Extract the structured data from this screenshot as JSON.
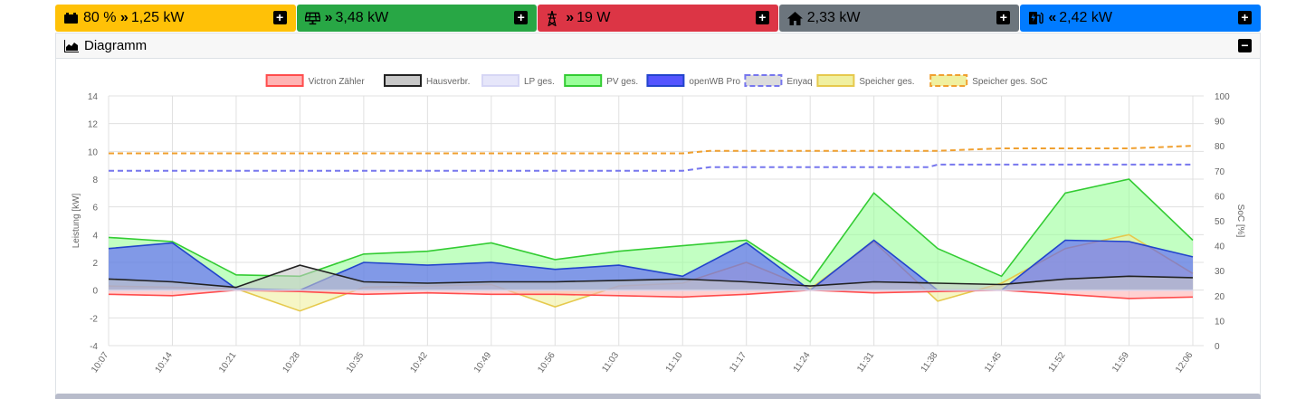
{
  "tiles": [
    {
      "name": "battery",
      "icon": "battery-car-icon",
      "value": "80 % ",
      "arrow": "»",
      "power": "1,25 kW",
      "color": "#ffc107"
    },
    {
      "name": "pv",
      "icon": "solar-panel-icon",
      "value": "",
      "arrow": "»",
      "power": "3,48 kW",
      "color": "#28a745"
    },
    {
      "name": "grid",
      "icon": "power-mast-icon",
      "value": "",
      "arrow": "»",
      "power": "19 W",
      "color": "#dc3545"
    },
    {
      "name": "house",
      "icon": "house-icon",
      "value": "",
      "arrow": "",
      "power": "2,33 kW",
      "color": "#6c757d"
    },
    {
      "name": "charge",
      "icon": "charging-station-icon",
      "value": "",
      "arrow": "«",
      "power": "2,42 kW",
      "color": "#007bff"
    }
  ],
  "tile_button": "+",
  "diagram": {
    "title": "Diagramm",
    "collapse_button": "−"
  },
  "chart_data": {
    "type": "line",
    "ylabel": "Leistung [kW]",
    "y2label": "SoC [%]",
    "ylim": [
      -4,
      14
    ],
    "y2lim": [
      0,
      100
    ],
    "yticks": [
      "14",
      "12",
      "10",
      "8",
      "6",
      "4",
      "2",
      "0",
      "-2",
      "-4"
    ],
    "y2ticks": [
      "100",
      "90",
      "80",
      "70",
      "60",
      "50",
      "40",
      "30",
      "20",
      "10",
      "0"
    ],
    "xticks": [
      "10:07",
      "10:14",
      "10:21",
      "10:28",
      "10:35",
      "10:42",
      "10:49",
      "10:56",
      "11:03",
      "11:10",
      "11:17",
      "11:24",
      "11:31",
      "11:38",
      "11:45",
      "11:52",
      "11:59",
      "12:06"
    ],
    "grid": true,
    "legend_position": "top",
    "series": [
      {
        "name": "Victron Zähler",
        "color": "#ff4d4d",
        "fill": "#ffb3b3",
        "style": "solid",
        "x": [
          "10:07",
          "10:14",
          "10:21",
          "10:28",
          "10:35",
          "10:42",
          "10:49",
          "10:56",
          "11:03",
          "11:10",
          "11:17",
          "11:24",
          "11:31",
          "11:38",
          "11:45",
          "11:52",
          "11:59",
          "12:06"
        ],
        "y": [
          -0.3,
          -0.4,
          0.0,
          -0.1,
          -0.3,
          -0.2,
          -0.3,
          -0.3,
          -0.4,
          -0.5,
          -0.3,
          0.0,
          -0.2,
          -0.1,
          0.0,
          -0.3,
          -0.6,
          -0.5
        ]
      },
      {
        "name": "Hausverbr.",
        "color": "#222222",
        "fill": "#c8c8c8",
        "style": "solid",
        "x": [
          "10:07",
          "10:14",
          "10:21",
          "10:28",
          "10:35",
          "10:42",
          "10:49",
          "10:56",
          "11:03",
          "11:10",
          "11:17",
          "11:24",
          "11:31",
          "11:38",
          "11:45",
          "11:52",
          "11:59",
          "12:06"
        ],
        "y": [
          0.8,
          0.6,
          0.2,
          1.8,
          0.6,
          0.5,
          0.6,
          0.6,
          0.7,
          0.8,
          0.6,
          0.3,
          0.6,
          0.5,
          0.4,
          0.8,
          1.0,
          0.9
        ]
      },
      {
        "name": "LP ges.",
        "color": "#d6d6f5",
        "fill": "#e6e6fa",
        "style": "solid",
        "x": [
          "10:07",
          "10:21",
          "10:35",
          "10:49",
          "11:03",
          "11:17",
          "11:31",
          "11:45",
          "11:59",
          "12:06"
        ],
        "y": [
          0,
          0,
          0,
          0,
          0,
          0,
          0,
          0,
          0,
          0
        ]
      },
      {
        "name": "PV ges.",
        "color": "#33cc33",
        "fill": "#99ff99",
        "style": "solid",
        "x": [
          "10:07",
          "10:14",
          "10:21",
          "10:28",
          "10:35",
          "10:42",
          "10:49",
          "10:56",
          "11:03",
          "11:10",
          "11:17",
          "11:24",
          "11:31",
          "11:38",
          "11:45",
          "11:52",
          "11:59",
          "12:06"
        ],
        "y": [
          3.8,
          3.5,
          1.1,
          1.0,
          2.6,
          2.8,
          3.4,
          2.2,
          2.8,
          3.2,
          3.6,
          0.6,
          7.0,
          3.0,
          1.0,
          7.0,
          8.0,
          3.6
        ]
      },
      {
        "name": "openWB Pro",
        "color": "#2244cc",
        "fill": "#5555ff",
        "style": "solid",
        "x": [
          "10:07",
          "10:14",
          "10:21",
          "10:28",
          "10:35",
          "10:42",
          "10:49",
          "10:56",
          "11:03",
          "11:10",
          "11:17",
          "11:24",
          "11:31",
          "11:38",
          "11:45",
          "11:52",
          "11:59",
          "12:06"
        ],
        "y": [
          3.0,
          3.4,
          0.1,
          0.0,
          2.0,
          1.8,
          2.0,
          1.5,
          1.8,
          1.0,
          3.4,
          0.0,
          3.6,
          0.0,
          0.0,
          3.6,
          3.5,
          2.4
        ]
      },
      {
        "name": "Enyaq",
        "color": "#7777ee",
        "fill": "#dcdcdc",
        "style": "dashed",
        "axis": "y2",
        "x": [
          "10:07",
          "10:21",
          "10:35",
          "10:49",
          "11:03",
          "11:10",
          "11:13",
          "11:24",
          "11:31",
          "11:37",
          "11:38",
          "11:45",
          "11:52",
          "11:59",
          "12:06"
        ],
        "y": [
          70,
          70,
          70,
          70,
          70,
          70,
          71.5,
          71.5,
          71.5,
          71.5,
          72.5,
          72.5,
          72.5,
          72.5,
          72.5
        ]
      },
      {
        "name": "Speicher ges.",
        "color": "#e6c94d",
        "fill": "#f0f0a0",
        "style": "solid",
        "x": [
          "10:07",
          "10:14",
          "10:21",
          "10:28",
          "10:35",
          "10:42",
          "10:49",
          "10:56",
          "11:03",
          "11:10",
          "11:17",
          "11:24",
          "11:31",
          "11:38",
          "11:45",
          "11:52",
          "11:59",
          "12:06"
        ],
        "y": [
          0.3,
          0.2,
          0.1,
          -1.5,
          0.2,
          0.3,
          0.4,
          -1.2,
          0.3,
          0.5,
          2.0,
          0.1,
          3.5,
          -0.8,
          0.5,
          3.0,
          4.0,
          1.2
        ]
      },
      {
        "name": "Speicher ges. SoC",
        "color": "#f0a030",
        "fill": "#f0f0a0",
        "style": "dashed",
        "axis": "y2",
        "x": [
          "10:07",
          "10:21",
          "10:35",
          "10:49",
          "11:03",
          "11:10",
          "11:13",
          "11:24",
          "11:31",
          "11:38",
          "11:45",
          "11:52",
          "11:59",
          "12:06"
        ],
        "y": [
          77,
          77,
          77,
          77,
          77,
          77,
          78,
          78,
          78,
          78,
          79,
          79,
          79,
          80
        ]
      }
    ]
  }
}
